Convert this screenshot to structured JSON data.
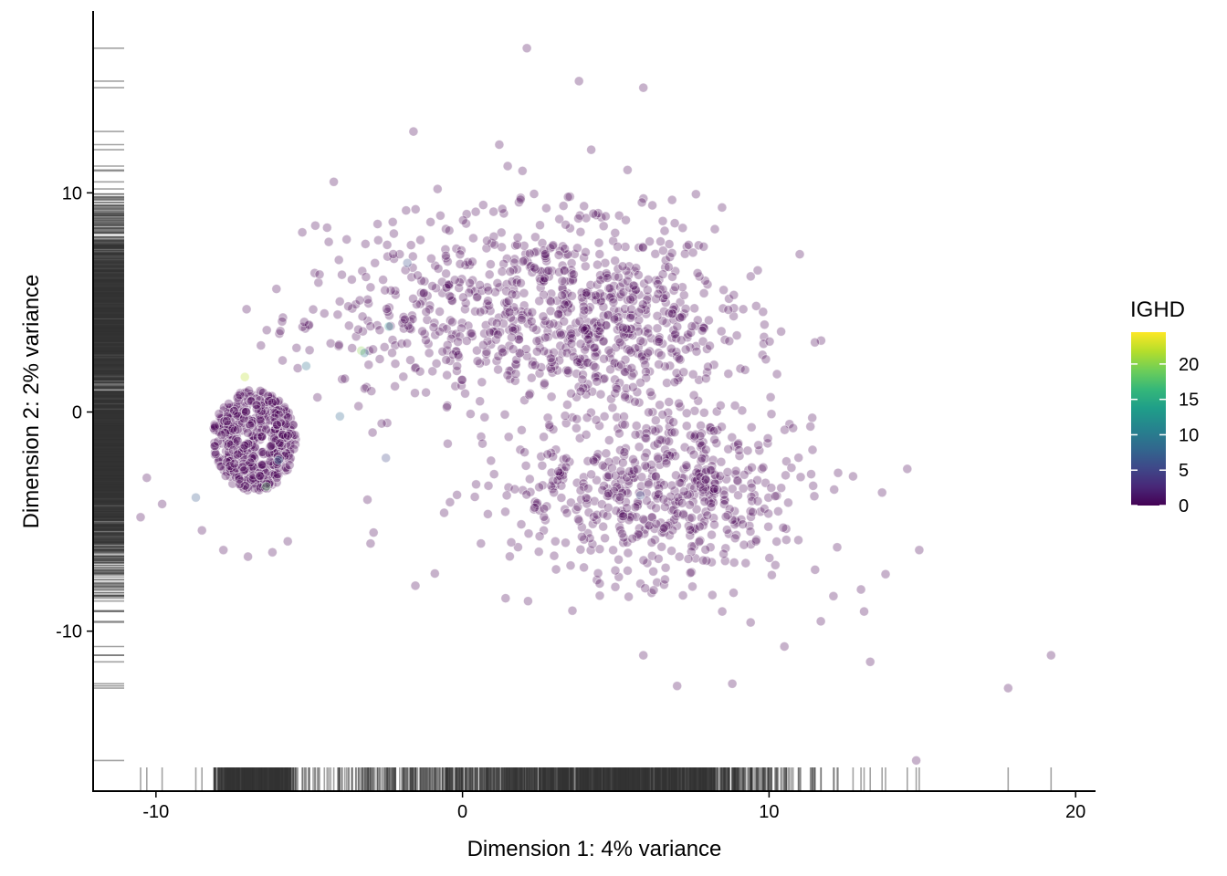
{
  "chart_data": {
    "type": "scatter",
    "title": "",
    "xlabel": "Dimension 1: 4% variance",
    "ylabel": "Dimension 2: 2% variance",
    "xlim": [
      -12.05,
      20.65
    ],
    "ylim": [
      -17.3,
      18.3
    ],
    "x_ticks": [
      -10,
      0,
      10,
      20
    ],
    "x_tick_labels": [
      "-10",
      "0",
      "10",
      "20"
    ],
    "y_ticks": [
      -10,
      0,
      10
    ],
    "y_tick_labels": [
      "-10",
      "0",
      "10"
    ],
    "grid": false,
    "rug": true,
    "color_variable": "IGHD",
    "colorbar": {
      "title": "IGHD",
      "range": [
        0,
        24.5
      ],
      "ticks": [
        0,
        5,
        10,
        15,
        20
      ],
      "tick_labels": [
        "0",
        "5",
        "10",
        "15",
        "20"
      ],
      "colormap": "viridis",
      "placement": "right"
    },
    "point_color_default": "#440154",
    "point_opacity": 0.3,
    "clusters": [
      {
        "name": "",
        "center": [
          -6.8,
          -1.3
        ],
        "spread": [
          0.85,
          1.1
        ],
        "count": 520,
        "shape": "disc"
      },
      {
        "name": "",
        "center": [
          -0.5,
          4.6
        ],
        "spread": [
          2.6,
          2.2
        ],
        "count": 300,
        "shape": "gaussian"
      },
      {
        "name": "",
        "center": [
          4.5,
          3.5
        ],
        "spread": [
          2.4,
          1.7
        ],
        "count": 420,
        "shape": "gaussian"
      },
      {
        "name": "",
        "center": [
          6.5,
          -3.5
        ],
        "spread": [
          2.5,
          2.1
        ],
        "count": 620,
        "shape": "gaussian"
      },
      {
        "name": "",
        "center": [
          4.0,
          6.5
        ],
        "spread": [
          2.2,
          1.9
        ],
        "count": 220,
        "shape": "gaussian"
      }
    ],
    "highlighted_points": [
      {
        "x": -7.1,
        "y": 1.6,
        "value": 22
      },
      {
        "x": -6.4,
        "y": -3.4,
        "value": 18
      },
      {
        "x": -3.3,
        "y": 2.8,
        "value": 20
      },
      {
        "x": -2.4,
        "y": 3.9,
        "value": 12
      },
      {
        "x": -5.1,
        "y": 2.1,
        "value": 9
      },
      {
        "x": -4.0,
        "y": -0.2,
        "value": 8
      },
      {
        "x": -3.2,
        "y": 2.7,
        "value": 10
      },
      {
        "x": -1.8,
        "y": 6.8,
        "value": 6
      },
      {
        "x": -8.7,
        "y": -3.9,
        "value": 7
      },
      {
        "x": -6.0,
        "y": -2.2,
        "value": 10
      },
      {
        "x": -2.5,
        "y": -2.1,
        "value": 5
      },
      {
        "x": 5.8,
        "y": -3.8,
        "value": 6
      }
    ],
    "outliers": [
      [
        -10.5,
        -4.8
      ],
      [
        -10.3,
        -3.0
      ],
      [
        -9.8,
        -4.2
      ],
      [
        -8.5,
        -5.4
      ],
      [
        -7.8,
        -6.3
      ],
      [
        -7.0,
        -6.6
      ],
      [
        -6.2,
        -6.4
      ],
      [
        -5.7,
        -5.9
      ],
      [
        1.2,
        12.2
      ],
      [
        2.1,
        16.6
      ],
      [
        3.8,
        15.1
      ],
      [
        5.9,
        14.8
      ],
      [
        -1.6,
        12.8
      ],
      [
        -4.2,
        10.5
      ],
      [
        11.0,
        7.2
      ],
      [
        14.9,
        -6.3
      ],
      [
        13.8,
        -7.4
      ],
      [
        13.1,
        -9.1
      ],
      [
        13.0,
        -8.1
      ],
      [
        13.3,
        -11.4
      ],
      [
        10.5,
        -10.7
      ],
      [
        9.4,
        -9.6
      ],
      [
        8.8,
        -12.4
      ],
      [
        7.0,
        -12.5
      ],
      [
        5.9,
        -11.1
      ],
      [
        17.8,
        -12.6
      ],
      [
        19.2,
        -11.1
      ],
      [
        14.8,
        -15.9
      ],
      [
        12.1,
        -8.4
      ],
      [
        11.5,
        -7.2
      ],
      [
        -0.6,
        -4.6
      ],
      [
        0.6,
        -6.0
      ],
      [
        -3.0,
        -6.0
      ],
      [
        -2.9,
        -5.5
      ],
      [
        -3.1,
        -4.0
      ]
    ]
  }
}
